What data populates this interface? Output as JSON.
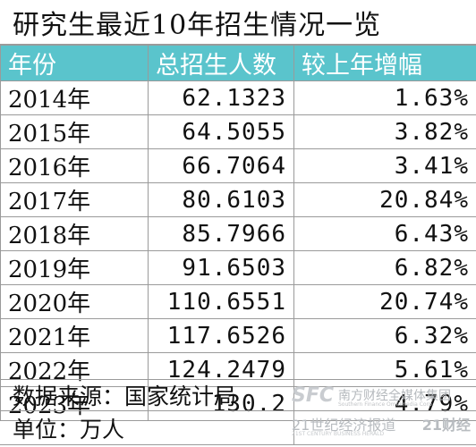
{
  "title": "研究生最近10年招生情况一览",
  "header": {
    "col_year": "年份",
    "col_total": "总招生人数",
    "col_growth": "较上年增幅",
    "color": "#5ac4cc"
  },
  "rows": [
    {
      "year": "2014年",
      "total": "62.1323",
      "growth": "1.63%"
    },
    {
      "year": "2015年",
      "total": "64.5055",
      "growth": "3.82%"
    },
    {
      "year": "2016年",
      "total": "66.7064",
      "growth": "3.41%"
    },
    {
      "year": "2017年",
      "total": "80.6103",
      "growth": "20.84%"
    },
    {
      "year": "2018年",
      "total": "85.7966",
      "growth": "6.43%"
    },
    {
      "year": "2019年",
      "total": "91.6503",
      "growth": "6.82%"
    },
    {
      "year": "2020年",
      "total": "110.6551",
      "growth": "20.74%"
    },
    {
      "year": "2021年",
      "total": "117.6526",
      "growth": "6.32%"
    },
    {
      "year": "2022年",
      "total": "124.2479",
      "growth": "5.61%"
    },
    {
      "year": "2023年",
      "total": "130.2",
      "growth": "4.79%"
    }
  ],
  "footer": {
    "source": "数据来源：国家统计局",
    "unit": "单位：万人"
  },
  "watermark": {
    "logo": "SFC",
    "name": "南方财经全媒体集团",
    "en": "Southern Finance Omnimedia Corp.",
    "brand_a": "21世纪经济报道",
    "brand_b": "21财经",
    "en2": "21ST CENTURY BUSINESS HERALD"
  }
}
